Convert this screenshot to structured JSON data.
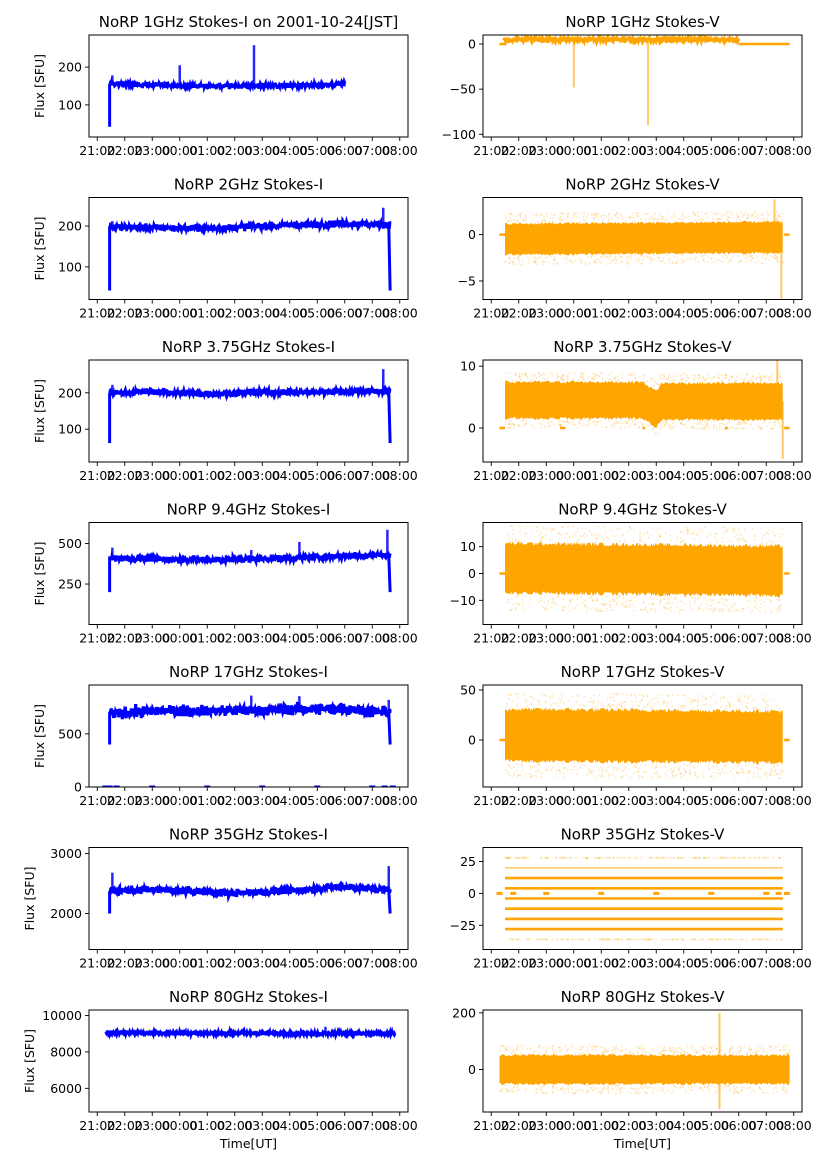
{
  "figure": {
    "background": "#ffffff",
    "i_color": "#0000ff",
    "v_color": "#ffa500"
  },
  "chart_data": [
    {
      "type": "scatter",
      "title": "NoRP 1GHz Stokes-I on 2001-10-24[JST]",
      "xlabel": "",
      "ylabel": "Flux [SFU]",
      "xlim_hours": [
        -3.3,
        8.3
      ],
      "ylim": [
        15,
        285
      ],
      "xticks": [
        "21:00",
        "22:00",
        "23:00",
        "00:00",
        "01:00",
        "02:00",
        "03:00",
        "04:00",
        "05:00",
        "06:00",
        "07:00",
        "08:00"
      ],
      "yticks": [
        100,
        200
      ],
      "series": {
        "start": -2.55,
        "end": 6.0,
        "ramp_from": 42,
        "level": [
          [
            -2.5,
            156
          ],
          [
            -1.0,
            153
          ],
          [
            1.0,
            150
          ],
          [
            3.0,
            151
          ],
          [
            5.0,
            151
          ],
          [
            6.0,
            155
          ]
        ],
        "noise": 3,
        "spikes": [
          {
            "t": 0.0,
            "peak": 205
          },
          {
            "t": 2.7,
            "peak": 258
          },
          {
            "t": -2.45,
            "peak": 178
          }
        ],
        "dips": [],
        "end_drop": null,
        "tail_zero": []
      }
    },
    {
      "type": "scatter",
      "title": "NoRP 1GHz Stokes-V",
      "xlabel": "",
      "ylabel": "",
      "xlim_hours": [
        -3.3,
        8.3
      ],
      "ylim": [
        -103,
        10
      ],
      "xticks": [
        "21:00",
        "22:00",
        "23:00",
        "00:00",
        "01:00",
        "02:00",
        "03:00",
        "04:00",
        "05:00",
        "06:00",
        "07:00",
        "08:00"
      ],
      "yticks": [
        -100,
        -50,
        0
      ],
      "series": {
        "start": -2.55,
        "end": 6.0,
        "level": [
          [
            -2.5,
            5
          ],
          [
            6.0,
            5
          ]
        ],
        "noise": 1.5,
        "flat_zero": [
          [
            -2.7,
            -2.5
          ],
          [
            6.0,
            7.85
          ]
        ],
        "spikes": [
          {
            "t": 0.0,
            "peak": -48
          },
          {
            "t": 2.7,
            "peak": -90
          }
        ]
      }
    },
    {
      "type": "scatter",
      "title": "NoRP 2GHz Stokes-I",
      "xlabel": "",
      "ylabel": "Flux [SFU]",
      "xlim_hours": [
        -3.3,
        8.3
      ],
      "ylim": [
        20,
        270
      ],
      "xticks": [
        "21:00",
        "22:00",
        "23:00",
        "00:00",
        "01:00",
        "02:00",
        "03:00",
        "04:00",
        "05:00",
        "06:00",
        "07:00",
        "08:00"
      ],
      "yticks": [
        100,
        200
      ],
      "series": {
        "start": -2.55,
        "end": 7.65,
        "ramp_from": 42,
        "level": [
          [
            -2.5,
            198
          ],
          [
            1.0,
            194
          ],
          [
            3.0,
            200
          ],
          [
            6.0,
            206
          ],
          [
            7.3,
            204
          ]
        ],
        "noise": 4,
        "spikes": [
          {
            "t": 7.4,
            "peak": 245
          },
          {
            "t": -2.45,
            "peak": 212
          }
        ],
        "end_drop": 42
      }
    },
    {
      "type": "scatter",
      "title": "NoRP 2GHz Stokes-V",
      "xlabel": "",
      "ylabel": "",
      "xlim_hours": [
        -3.3,
        8.3
      ],
      "ylim": [
        -7,
        4
      ],
      "xticks": [
        "21:00",
        "22:00",
        "23:00",
        "00:00",
        "01:00",
        "02:00",
        "03:00",
        "04:00",
        "05:00",
        "06:00",
        "07:00",
        "08:00"
      ],
      "yticks": [
        -5,
        0
      ],
      "series": {
        "start": -2.5,
        "end": 7.6,
        "level": [
          [
            -2.5,
            -0.5
          ],
          [
            7.0,
            -0.3
          ]
        ],
        "band": 1.8,
        "outer": 2.8,
        "flat_zero": [
          [
            -2.7,
            -2.5
          ],
          [
            7.65,
            7.85
          ]
        ],
        "spikes": [
          {
            "t": 7.3,
            "peak": 3.8
          },
          {
            "t": 7.55,
            "peak": -7
          }
        ]
      }
    },
    {
      "type": "scatter",
      "title": "NoRP 3.75GHz Stokes-I",
      "xlabel": "",
      "ylabel": "Flux [SFU]",
      "xlim_hours": [
        -3.3,
        8.3
      ],
      "ylim": [
        10,
        290
      ],
      "xticks": [
        "21:00",
        "22:00",
        "23:00",
        "00:00",
        "01:00",
        "02:00",
        "03:00",
        "04:00",
        "05:00",
        "06:00",
        "07:00",
        "08:00"
      ],
      "yticks": [
        100,
        200
      ],
      "series": {
        "start": -2.55,
        "end": 7.65,
        "ramp_from": 62,
        "level": [
          [
            -2.5,
            200
          ],
          [
            -1,
            203
          ],
          [
            1.0,
            197
          ],
          [
            3.0,
            202
          ],
          [
            4.5,
            201
          ],
          [
            6.0,
            205
          ],
          [
            7.3,
            204
          ]
        ],
        "noise": 4,
        "spikes": [
          {
            "t": 7.4,
            "peak": 265
          },
          {
            "t": -2.45,
            "peak": 222
          }
        ],
        "end_drop": 62
      }
    },
    {
      "type": "scatter",
      "title": "NoRP 3.75GHz Stokes-V",
      "xlabel": "",
      "ylabel": "",
      "xlim_hours": [
        -3.3,
        8.3
      ],
      "ylim": [
        -5.5,
        11
      ],
      "xticks": [
        "21:00",
        "22:00",
        "23:00",
        "00:00",
        "01:00",
        "02:00",
        "03:00",
        "04:00",
        "05:00",
        "06:00",
        "07:00",
        "08:00"
      ],
      "yticks": [
        0,
        10
      ],
      "series": {
        "start": -2.5,
        "end": 7.6,
        "level": [
          [
            -2.5,
            4.5
          ],
          [
            2.5,
            4.5
          ],
          [
            3.0,
            3.0
          ],
          [
            3.2,
            4.3
          ],
          [
            7.3,
            4.3
          ]
        ],
        "band": 3.2,
        "outer": 4.5,
        "flat_zero": [
          [
            -2.7,
            -2.5
          ],
          [
            -0.5,
            -0.3
          ],
          [
            2.5,
            2.6
          ],
          [
            5.5,
            5.6
          ],
          [
            7.65,
            7.85
          ]
        ],
        "spikes": [
          {
            "t": 7.4,
            "peak": 11
          },
          {
            "t": 7.6,
            "peak": -5
          }
        ]
      }
    },
    {
      "type": "scatter",
      "title": "NoRP 9.4GHz Stokes-I",
      "xlabel": "",
      "ylabel": "Flux [SFU]",
      "xlim_hours": [
        -3.3,
        8.3
      ],
      "ylim": [
        0,
        630
      ],
      "xticks": [
        "21:00",
        "22:00",
        "23:00",
        "00:00",
        "01:00",
        "02:00",
        "03:00",
        "04:00",
        "05:00",
        "06:00",
        "07:00",
        "08:00"
      ],
      "yticks": [
        250,
        500
      ],
      "series": {
        "start": -2.55,
        "end": 7.65,
        "ramp_from": 200,
        "level": [
          [
            -2.5,
            410
          ],
          [
            1.0,
            400
          ],
          [
            4.0,
            410
          ],
          [
            6.0,
            425
          ],
          [
            7.3,
            430
          ]
        ],
        "noise": 10,
        "spikes": [
          {
            "t": 2.6,
            "peak": 460
          },
          {
            "t": 4.35,
            "peak": 510
          },
          {
            "t": 7.55,
            "peak": 585
          },
          {
            "t": -2.45,
            "peak": 475
          }
        ],
        "end_drop": 200
      }
    },
    {
      "type": "scatter",
      "title": "NoRP 9.4GHz Stokes-V",
      "xlabel": "",
      "ylabel": "",
      "xlim_hours": [
        -3.3,
        8.3
      ],
      "ylim": [
        -19,
        19
      ],
      "xticks": [
        "21:00",
        "22:00",
        "23:00",
        "00:00",
        "01:00",
        "02:00",
        "03:00",
        "04:00",
        "05:00",
        "06:00",
        "07:00",
        "08:00"
      ],
      "yticks": [
        -10,
        0,
        10
      ],
      "series": {
        "start": -2.5,
        "end": 7.6,
        "level": [
          [
            -2.5,
            2
          ],
          [
            7.6,
            1
          ]
        ],
        "band": 10,
        "outer": 16,
        "flat_zero": [
          [
            -2.7,
            -2.5
          ],
          [
            7.65,
            7.85
          ]
        ],
        "spikes": []
      }
    },
    {
      "type": "scatter",
      "title": "NoRP 17GHz Stokes-I",
      "xlabel": "",
      "ylabel": "Flux [SFU]",
      "xlim_hours": [
        -3.3,
        8.3
      ],
      "ylim": [
        0,
        960
      ],
      "xticks": [
        "21:00",
        "22:00",
        "23:00",
        "00:00",
        "01:00",
        "02:00",
        "03:00",
        "04:00",
        "05:00",
        "06:00",
        "07:00",
        "08:00"
      ],
      "yticks": [
        0,
        500
      ],
      "series": {
        "start": -2.55,
        "end": 7.65,
        "ramp_from": 400,
        "level": [
          [
            -2.5,
            690
          ],
          [
            -1,
            715
          ],
          [
            2.0,
            720
          ],
          [
            4.0,
            730
          ],
          [
            6.0,
            740
          ],
          [
            7.3,
            705
          ]
        ],
        "noise": 25,
        "spikes": [
          {
            "t": 2.6,
            "peak": 860
          },
          {
            "t": 4.35,
            "peak": 855
          },
          {
            "t": 7.6,
            "peak": 820
          }
        ],
        "end_drop": 400,
        "zero_marks": [
          -2.7,
          -2.55,
          -2.3,
          -1.0,
          1.0,
          3.0,
          5.0,
          7.0,
          7.45,
          7.75
        ]
      }
    },
    {
      "type": "scatter",
      "title": "NoRP 17GHz Stokes-V",
      "xlabel": "",
      "ylabel": "",
      "xlim_hours": [
        -3.3,
        8.3
      ],
      "ylim": [
        -47,
        55
      ],
      "xticks": [
        "21:00",
        "22:00",
        "23:00",
        "00:00",
        "01:00",
        "02:00",
        "03:00",
        "04:00",
        "05:00",
        "06:00",
        "07:00",
        "08:00"
      ],
      "yticks": [
        0,
        50
      ],
      "series": {
        "start": -2.5,
        "end": 7.6,
        "level": [
          [
            -2.5,
            5
          ],
          [
            7.6,
            3
          ]
        ],
        "band": 28,
        "outer": 42,
        "flat_zero": [
          [
            -2.7,
            -2.5
          ],
          [
            7.65,
            7.85
          ]
        ],
        "spikes": []
      }
    },
    {
      "type": "scatter",
      "title": "NoRP 35GHz Stokes-I",
      "xlabel": "",
      "ylabel": "Flux [SFU]",
      "xlim_hours": [
        -3.3,
        8.3
      ],
      "ylim": [
        1400,
        3100
      ],
      "xticks": [
        "21:00",
        "22:00",
        "23:00",
        "00:00",
        "01:00",
        "02:00",
        "03:00",
        "04:00",
        "05:00",
        "06:00",
        "07:00",
        "08:00"
      ],
      "yticks": [
        2000,
        3000
      ],
      "series": {
        "start": -2.55,
        "end": 7.65,
        "ramp_from": 2000,
        "level": [
          [
            -2.5,
            2370
          ],
          [
            -1.0,
            2400
          ],
          [
            2.0,
            2340
          ],
          [
            4.0,
            2380
          ],
          [
            6.0,
            2450
          ],
          [
            7.3,
            2400
          ]
        ],
        "noise": 30,
        "spikes": [
          {
            "t": -2.45,
            "peak": 2680
          },
          {
            "t": 7.6,
            "peak": 2790
          }
        ],
        "end_drop": 2000
      }
    },
    {
      "type": "scatter",
      "title": "NoRP 35GHz Stokes-V",
      "xlabel": "",
      "ylabel": "",
      "xlim_hours": [
        -3.3,
        8.3
      ],
      "ylim": [
        -44,
        36
      ],
      "xticks": [
        "21:00",
        "22:00",
        "23:00",
        "00:00",
        "01:00",
        "02:00",
        "03:00",
        "04:00",
        "05:00",
        "06:00",
        "07:00",
        "08:00"
      ],
      "yticks": [
        -25,
        0,
        25
      ],
      "series": {
        "start": -2.5,
        "end": 7.6,
        "quantized_levels": [
          20,
          12,
          4,
          -4,
          -12,
          -20,
          -28
        ],
        "sparse_levels": [
          28,
          -36
        ],
        "zero_marks": [
          -2.7,
          -2.2,
          -1.0,
          1.0,
          3.0,
          5.0,
          7.0,
          7.45,
          7.75
        ]
      }
    },
    {
      "type": "scatter",
      "title": "NoRP 80GHz Stokes-I",
      "xlabel": "Time[UT]",
      "ylabel": "Flux [SFU]",
      "xlim_hours": [
        -3.3,
        8.3
      ],
      "ylim": [
        4700,
        10300
      ],
      "xticks": [
        "21:00",
        "22:00",
        "23:00",
        "00:00",
        "01:00",
        "02:00",
        "03:00",
        "04:00",
        "05:00",
        "06:00",
        "07:00",
        "08:00"
      ],
      "yticks": [
        6000,
        8000,
        10000
      ],
      "series": {
        "start": -2.7,
        "end": 7.85,
        "level": [
          [
            -2.7,
            9050
          ],
          [
            7.85,
            9000
          ]
        ],
        "noise": 40,
        "spikes": [
          {
            "t": 5.3,
            "peak": 9380
          }
        ],
        "end_drop": null
      }
    },
    {
      "type": "scatter",
      "title": "NoRP 80GHz Stokes-V",
      "xlabel": "Time[UT]",
      "ylabel": "",
      "xlim_hours": [
        -3.3,
        8.3
      ],
      "ylim": [
        -150,
        210
      ],
      "xticks": [
        "21:00",
        "22:00",
        "23:00",
        "00:00",
        "01:00",
        "02:00",
        "03:00",
        "04:00",
        "05:00",
        "06:00",
        "07:00",
        "08:00"
      ],
      "yticks": [
        0,
        200
      ],
      "series": {
        "start": -2.7,
        "end": 7.85,
        "level": [
          [
            -2.7,
            0
          ],
          [
            7.85,
            0
          ]
        ],
        "band": 55,
        "outer": 85,
        "flat_zero": [],
        "spikes": [
          {
            "t": 5.3,
            "peak": 200
          },
          {
            "t": 5.3,
            "peak": -140
          }
        ]
      }
    }
  ]
}
